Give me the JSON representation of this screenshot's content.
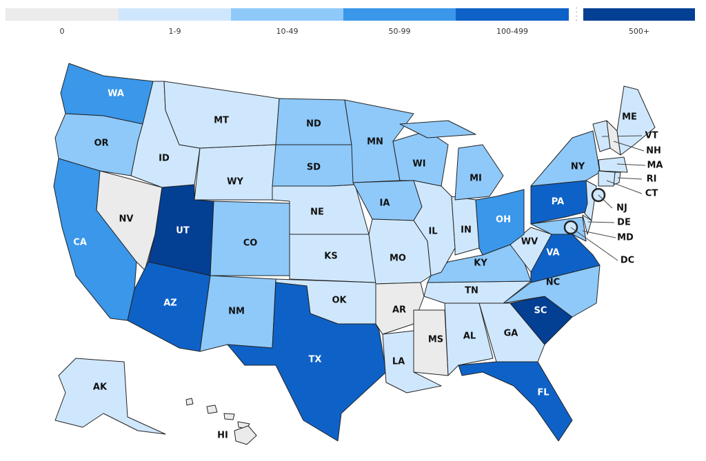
{
  "legend": {
    "bins": [
      {
        "label": "0",
        "color": "#ebebeb"
      },
      {
        "label": "1-9",
        "color": "#cfe7fc"
      },
      {
        "label": "10-49",
        "color": "#8ec9fa"
      },
      {
        "label": "50-99",
        "color": "#3a97ea"
      },
      {
        "label": "100-499",
        "color": "#0e62c7"
      },
      {
        "label": "500+",
        "color": "#033f93"
      }
    ]
  },
  "states": [
    {
      "abbr": "WA",
      "range": "50-99"
    },
    {
      "abbr": "OR",
      "range": "10-49"
    },
    {
      "abbr": "CA",
      "range": "50-99"
    },
    {
      "abbr": "NV",
      "range": "0"
    },
    {
      "abbr": "ID",
      "range": "1-9"
    },
    {
      "abbr": "MT",
      "range": "1-9"
    },
    {
      "abbr": "WY",
      "range": "1-9"
    },
    {
      "abbr": "UT",
      "range": "500+"
    },
    {
      "abbr": "AZ",
      "range": "100-499"
    },
    {
      "abbr": "CO",
      "range": "10-49"
    },
    {
      "abbr": "NM",
      "range": "10-49"
    },
    {
      "abbr": "ND",
      "range": "10-49"
    },
    {
      "abbr": "SD",
      "range": "10-49"
    },
    {
      "abbr": "NE",
      "range": "1-9"
    },
    {
      "abbr": "KS",
      "range": "1-9"
    },
    {
      "abbr": "OK",
      "range": "1-9"
    },
    {
      "abbr": "TX",
      "range": "100-499"
    },
    {
      "abbr": "MN",
      "range": "10-49"
    },
    {
      "abbr": "IA",
      "range": "10-49"
    },
    {
      "abbr": "MO",
      "range": "1-9"
    },
    {
      "abbr": "AR",
      "range": "0"
    },
    {
      "abbr": "LA",
      "range": "1-9"
    },
    {
      "abbr": "MS",
      "range": "0"
    },
    {
      "abbr": "AL",
      "range": "1-9"
    },
    {
      "abbr": "GA",
      "range": "1-9"
    },
    {
      "abbr": "FL",
      "range": "100-499"
    },
    {
      "abbr": "SC",
      "range": "500+"
    },
    {
      "abbr": "NC",
      "range": "10-49"
    },
    {
      "abbr": "TN",
      "range": "1-9"
    },
    {
      "abbr": "KY",
      "range": "10-49"
    },
    {
      "abbr": "WV",
      "range": "1-9"
    },
    {
      "abbr": "VA",
      "range": "100-499"
    },
    {
      "abbr": "WI",
      "range": "10-49"
    },
    {
      "abbr": "IL",
      "range": "1-9"
    },
    {
      "abbr": "IN",
      "range": "1-9"
    },
    {
      "abbr": "MI",
      "range": "10-49"
    },
    {
      "abbr": "OH",
      "range": "50-99"
    },
    {
      "abbr": "PA",
      "range": "100-499"
    },
    {
      "abbr": "NY",
      "range": "10-49"
    },
    {
      "abbr": "ME",
      "range": "1-9"
    },
    {
      "abbr": "VT",
      "range": "1-9"
    },
    {
      "abbr": "NH",
      "range": "0"
    },
    {
      "abbr": "MA",
      "range": "1-9"
    },
    {
      "abbr": "RI",
      "range": "1-9"
    },
    {
      "abbr": "CT",
      "range": "1-9"
    },
    {
      "abbr": "NJ",
      "range": "1-9"
    },
    {
      "abbr": "DE",
      "range": "1-9"
    },
    {
      "abbr": "MD",
      "range": "10-49"
    },
    {
      "abbr": "DC",
      "range": "1-9"
    },
    {
      "abbr": "AK",
      "range": "1-9"
    },
    {
      "abbr": "HI",
      "range": "0"
    }
  ]
}
